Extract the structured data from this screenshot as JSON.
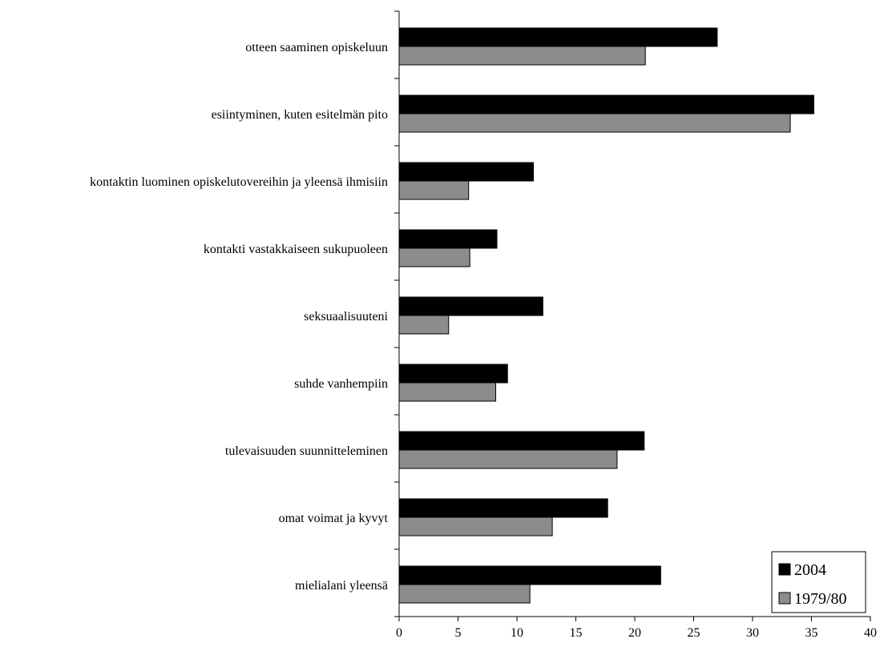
{
  "chart_data": {
    "type": "bar",
    "orientation": "horizontal",
    "categories": [
      "otteen saaminen opiskeluun",
      "esiintyminen, kuten esitelmän pito",
      "kontaktin luominen opiskelutovereihin ja yleensä ihmisiin",
      "kontakti vastakkaiseen sukupuoleen",
      "seksuaalisuuteni",
      "suhde vanhempiin",
      "tulevaisuuden suunnitteleminen",
      "omat voimat ja kyvyt",
      "mielialani yleensä"
    ],
    "series": [
      {
        "name": "2004",
        "color": "#000000",
        "values": [
          27.0,
          35.2,
          11.4,
          8.3,
          12.2,
          9.2,
          20.8,
          17.7,
          22.2
        ]
      },
      {
        "name": "1979/80",
        "color": "#8c8c8c",
        "values": [
          20.9,
          33.2,
          5.9,
          6.0,
          4.2,
          8.2,
          18.5,
          13.0,
          11.1
        ]
      }
    ],
    "xlim": [
      0,
      40
    ],
    "xticks": [
      "0",
      "5",
      "10",
      "15",
      "20",
      "25",
      "30",
      "35",
      "40"
    ],
    "legend_position": "bottom-right",
    "grid": false,
    "xlabel": "",
    "ylabel": "",
    "title": ""
  }
}
